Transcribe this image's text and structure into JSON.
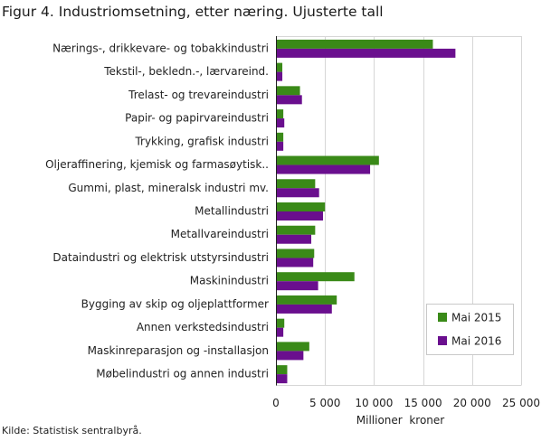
{
  "title": "Figur 4. Industriomsetning, etter næring. Ujusterte tall",
  "source": "Kilde: Statistisk sentralbyrå.",
  "chart_data": {
    "type": "bar",
    "orientation": "horizontal",
    "title": "Figur 4. Industriomsetning, etter næring. Ujusterte tall",
    "xlabel": "Millioner  kroner",
    "ylabel": "",
    "xlim": [
      0,
      25000
    ],
    "xticks": [
      0,
      5000,
      10000,
      15000,
      20000,
      25000
    ],
    "xtick_labels": [
      "0",
      "5 000",
      "10 000",
      "15 000",
      "20 000",
      "25 000"
    ],
    "grid": true,
    "legend_position": "bottom-right",
    "categories": [
      "Nærings-, drikkevare- og tobakkindustri",
      "Tekstil-, bekledn.-, lærvareind.",
      "Trelast- og trevareindustri",
      "Papir- og papirvareindustri",
      "Trykking, grafisk industri",
      "Oljeraffinering, kjemisk og farmasøytisk..",
      "Gummi, plast, mineralsk industri mv.",
      "Metallindustri",
      "Metallvareindustri",
      "Dataindustri og elektrisk utstyrsindustri",
      "Maskinindustri",
      "Bygging av skip og oljeplattformer",
      "Annen verkstedsindustri",
      "Maskinreparasjon og -installasjon",
      "Møbelindustri og annen industri"
    ],
    "series": [
      {
        "name": "Mai 2015",
        "color": "#3a8a18",
        "values": [
          16000,
          650,
          2450,
          750,
          750,
          10500,
          4000,
          5000,
          4000,
          3900,
          8000,
          6200,
          850,
          3400,
          1150
        ]
      },
      {
        "name": "Mai 2016",
        "color": "#6a0f8e",
        "values": [
          18300,
          650,
          2650,
          850,
          750,
          9600,
          4400,
          4800,
          3600,
          3800,
          4300,
          5700,
          750,
          2800,
          1150
        ]
      }
    ]
  }
}
